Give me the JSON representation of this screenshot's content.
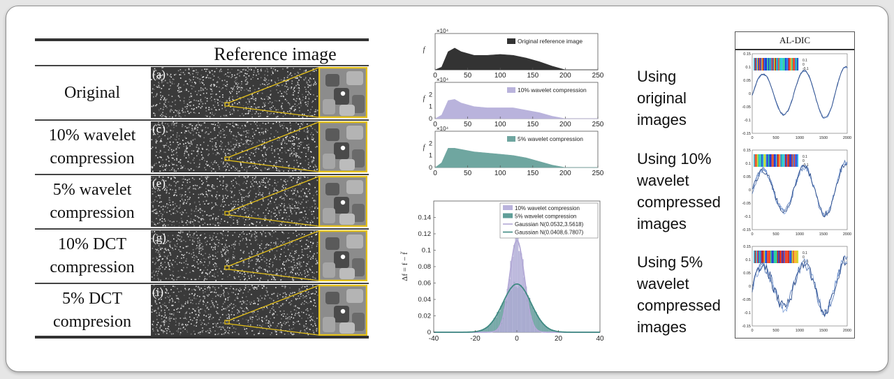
{
  "table": {
    "header": "Reference image",
    "rows": [
      {
        "label_lines": [
          "Original"
        ],
        "tag": "(a)"
      },
      {
        "label_lines": [
          "10% wavelet",
          "compression"
        ],
        "tag": "(c)"
      },
      {
        "label_lines": [
          "5% wavelet",
          "compression"
        ],
        "tag": "(e)"
      },
      {
        "label_lines": [
          "10% DCT",
          "compression"
        ],
        "tag": "(g)"
      },
      {
        "label_lines": [
          "5% DCT",
          "compresion"
        ],
        "tag": "(i)"
      }
    ]
  },
  "histograms": {
    "chart_data": [
      {
        "type": "area",
        "title": "",
        "ylabel": "f",
        "multiplier": "×10⁴",
        "legend": "Original reference image",
        "color": "#333333",
        "x": [
          0,
          10,
          20,
          30,
          40,
          60,
          80,
          100,
          120,
          140,
          160,
          180,
          200,
          250
        ],
        "y": [
          0,
          0.3,
          2.0,
          2.4,
          2.0,
          1.6,
          1.6,
          1.7,
          1.6,
          1.3,
          0.9,
          0.4,
          0,
          0
        ],
        "xticks": [
          0,
          50,
          100,
          150,
          200,
          250
        ],
        "xlim": [
          0,
          250
        ],
        "ylim": [
          0,
          4
        ]
      },
      {
        "type": "area",
        "title": "",
        "ylabel": "f",
        "multiplier": "×10⁴",
        "legend": "10% wavelet compression",
        "color": "#b9b3dc",
        "x": [
          0,
          10,
          20,
          30,
          40,
          60,
          80,
          100,
          120,
          140,
          160,
          180,
          200,
          250
        ],
        "y": [
          0,
          0.3,
          1.5,
          1.6,
          1.3,
          1.0,
          0.9,
          0.9,
          0.9,
          0.7,
          0.5,
          0.2,
          0,
          0
        ],
        "xticks": [
          0,
          50,
          100,
          150,
          200,
          250
        ],
        "yticks": [
          0,
          1,
          2
        ],
        "xlim": [
          0,
          250
        ],
        "ylim": [
          0,
          3
        ]
      },
      {
        "type": "area",
        "title": "",
        "ylabel": "f",
        "multiplier": "×10⁴",
        "legend": "5%  wavelet compression",
        "color": "#6fa6a0",
        "x": [
          0,
          10,
          20,
          30,
          40,
          60,
          80,
          100,
          120,
          140,
          160,
          180,
          200,
          250
        ],
        "y": [
          0,
          0.4,
          1.6,
          1.6,
          1.5,
          1.3,
          1.2,
          1.1,
          1.0,
          0.8,
          0.5,
          0.2,
          0,
          0
        ],
        "xticks": [
          0,
          50,
          100,
          150,
          200,
          250
        ],
        "yticks": [
          0,
          1,
          2
        ],
        "xlim": [
          0,
          250
        ],
        "ylim": [
          0,
          3
        ]
      }
    ]
  },
  "error": {
    "chart_data": {
      "type": "area",
      "ylabel": "Δf = f − f̃",
      "xlim": [
        -40,
        40
      ],
      "ylim": [
        0,
        0.16
      ],
      "xticks": [
        -40,
        -20,
        0,
        20,
        40
      ],
      "yticks": [
        0,
        0.02,
        0.04,
        0.06,
        0.08,
        0.1,
        0.12,
        0.14
      ],
      "series": [
        {
          "name": "10% wavelet compression",
          "kind": "hist",
          "mean": 0.0532,
          "std": 3.5618,
          "color": "#b9b3dc"
        },
        {
          "name": "5%  wavelet compression",
          "kind": "hist",
          "mean": 0.0408,
          "std": 6.7807,
          "color": "#5f9e98"
        },
        {
          "name": "Gaussian N(0.0532,3.5618)",
          "kind": "line",
          "mean": 0.0532,
          "std": 3.5618,
          "color": "#b3a9d6"
        },
        {
          "name": "Gaussian N(0.0408,6.7807)",
          "kind": "line",
          "mean": 0.0408,
          "std": 6.7807,
          "color": "#3f8a82"
        }
      ]
    }
  },
  "captions": [
    [
      "Using",
      "original",
      "images"
    ],
    [
      "Using 10%",
      "wavelet",
      "compressed",
      "images"
    ],
    [
      "Using 5%",
      "wavelet",
      "compressed",
      "images"
    ]
  ],
  "aldic": {
    "title": "AL-DIC",
    "yticks": [
      "0.15",
      "0.1",
      "0.05",
      "0",
      "-0.05",
      "-0.1",
      "-0.15"
    ],
    "xticks": [
      "0",
      "500",
      "1000",
      "1500",
      "2000"
    ],
    "legend": [
      "0.1",
      "0",
      "-0.1"
    ]
  }
}
